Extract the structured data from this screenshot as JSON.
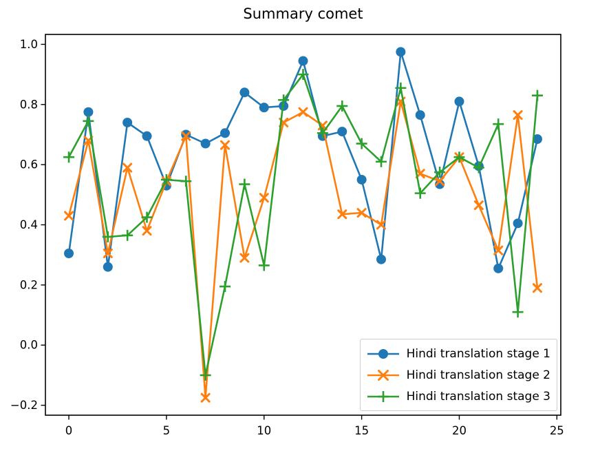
{
  "title": "Summary comet",
  "colors": {
    "stage1": "#1f77b4",
    "stage2": "#ff7f0e",
    "stage3": "#2ca02c",
    "axis": "#000000",
    "tick_text": "#000000",
    "legend_border": "#cccccc",
    "background": "#ffffff"
  },
  "chart_data": {
    "type": "line",
    "title": "Summary comet",
    "xlabel": "",
    "ylabel": "",
    "grid": false,
    "legend_position": "lower right",
    "x": [
      0,
      1,
      2,
      3,
      4,
      5,
      6,
      7,
      8,
      9,
      10,
      11,
      12,
      13,
      14,
      15,
      16,
      17,
      18,
      19,
      20,
      21,
      22,
      23,
      24
    ],
    "xlim": [
      -1.2,
      25.2
    ],
    "ylim": [
      -0.233,
      1.033
    ],
    "xticks": [
      0,
      5,
      10,
      15,
      20,
      25
    ],
    "xtick_labels": [
      "0",
      "5",
      "10",
      "15",
      "20",
      "25"
    ],
    "yticks": [
      -0.2,
      0.0,
      0.2,
      0.4,
      0.6,
      0.8,
      1.0
    ],
    "ytick_labels": [
      "−0.2",
      "0.0",
      "0.2",
      "0.4",
      "0.6",
      "0.8",
      "1.0"
    ],
    "series": [
      {
        "name": "Hindi translation stage 1",
        "color": "#1f77b4",
        "marker": "circle",
        "values": [
          0.305,
          0.775,
          0.26,
          0.74,
          0.695,
          0.53,
          0.7,
          0.67,
          0.705,
          0.84,
          0.79,
          0.795,
          0.945,
          0.695,
          0.71,
          0.55,
          0.285,
          0.975,
          0.765,
          0.535,
          0.81,
          0.595,
          0.255,
          0.405,
          0.685
        ]
      },
      {
        "name": "Hindi translation stage 2",
        "color": "#ff7f0e",
        "marker": "x",
        "values": [
          0.43,
          0.68,
          0.305,
          0.59,
          0.38,
          0.545,
          0.695,
          -0.175,
          0.665,
          0.29,
          0.49,
          0.74,
          0.775,
          0.73,
          0.435,
          0.44,
          0.4,
          0.81,
          0.57,
          0.545,
          0.625,
          0.465,
          0.315,
          0.765,
          0.19
        ]
      },
      {
        "name": "Hindi translation stage 3",
        "color": "#2ca02c",
        "marker": "plus",
        "values": [
          0.625,
          0.745,
          0.36,
          0.365,
          0.425,
          0.55,
          0.545,
          -0.1,
          0.195,
          0.535,
          0.265,
          0.815,
          0.9,
          0.705,
          0.795,
          0.67,
          0.61,
          0.855,
          0.505,
          0.575,
          0.625,
          0.59,
          0.735,
          0.11,
          0.83
        ]
      }
    ]
  }
}
